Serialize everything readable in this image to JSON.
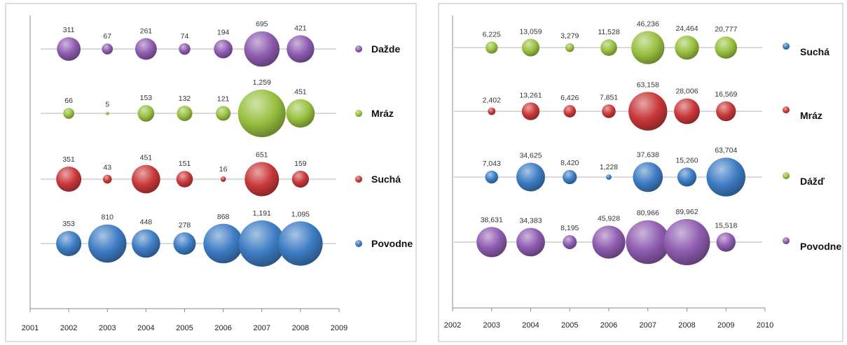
{
  "colors": {
    "purple": "#8e5bb0",
    "green": "#98c040",
    "red": "#c9383a",
    "blue": "#3d7cc4"
  },
  "chart_data": [
    {
      "type": "scatter",
      "subtype": "bubble",
      "title": "",
      "xlabel": "",
      "ylabel": "",
      "xlim": [
        2001,
        2009
      ],
      "x_ticks": [
        "2001",
        "2002",
        "2003",
        "2004",
        "2005",
        "2006",
        "2007",
        "2008",
        "2009"
      ],
      "x": [
        2002,
        2003,
        2004,
        2005,
        2006,
        2007,
        2008
      ],
      "grid": false,
      "legend_position": "right",
      "series": [
        {
          "name": "Dažde",
          "color": "#8e5bb0",
          "values": [
            311,
            67,
            261,
            74,
            194,
            695,
            421
          ],
          "labels": [
            "311",
            "67",
            "261",
            "74",
            "194",
            "695",
            "421"
          ]
        },
        {
          "name": "Mráz",
          "color": "#98c040",
          "values": [
            66,
            5,
            153,
            132,
            121,
            1259,
            451
          ],
          "labels": [
            "66",
            "5",
            "153",
            "132",
            "121",
            "1,259",
            "451"
          ]
        },
        {
          "name": "Suchá",
          "color": "#c9383a",
          "values": [
            351,
            43,
            451,
            151,
            16,
            651,
            159
          ],
          "labels": [
            "351",
            "43",
            "451",
            "151",
            "16",
            "651",
            "159"
          ]
        },
        {
          "name": "Povodne",
          "color": "#3d7cc4",
          "values": [
            353,
            810,
            448,
            278,
            868,
            1191,
            1095
          ],
          "labels": [
            "353",
            "810",
            "448",
            "278",
            "868",
            "1,191",
            "1,095"
          ]
        }
      ]
    },
    {
      "type": "scatter",
      "subtype": "bubble",
      "title": "",
      "xlabel": "",
      "ylabel": "",
      "xlim": [
        2002,
        2010
      ],
      "x_ticks": [
        "2002",
        "2003",
        "2004",
        "2005",
        "2006",
        "2007",
        "2008",
        "2009",
        "2010"
      ],
      "x": [
        2003,
        2004,
        2005,
        2006,
        2007,
        2008,
        2009
      ],
      "grid": false,
      "legend_position": "right",
      "series": [
        {
          "name": "Suchá",
          "color": "#98c040",
          "values": [
            6225,
            13059,
            3279,
            11528,
            46236,
            24464,
            20777
          ],
          "labels": [
            "6,225",
            "13,059",
            "3,279",
            "11,528",
            "46,236",
            "24,464",
            "20,777"
          ],
          "legend_color": "#3d7cc4"
        },
        {
          "name": "Mráz",
          "color": "#c9383a",
          "values": [
            2402,
            13261,
            6426,
            7851,
            63158,
            28006,
            16569
          ],
          "labels": [
            "2,402",
            "13,261",
            "6,426",
            "7,851",
            "63,158",
            "28,006",
            "16,569"
          ],
          "legend_color": "#c9383a"
        },
        {
          "name": "Dážď",
          "color": "#3d7cc4",
          "values": [
            7043,
            34625,
            8420,
            1228,
            37638,
            15260,
            63704
          ],
          "labels": [
            "7,043",
            "34,625",
            "8,420",
            "1,228",
            "37,638",
            "15,260",
            "63,704"
          ],
          "legend_color": "#98c040"
        },
        {
          "name": "Povodne",
          "color": "#8e5bb0",
          "values": [
            38631,
            34383,
            8195,
            45928,
            80966,
            89962,
            15518
          ],
          "labels": [
            "38,631",
            "34,383",
            "8,195",
            "45,928",
            "80,966",
            "89,962",
            "15,518"
          ],
          "legend_color": "#8e5bb0"
        }
      ]
    }
  ]
}
